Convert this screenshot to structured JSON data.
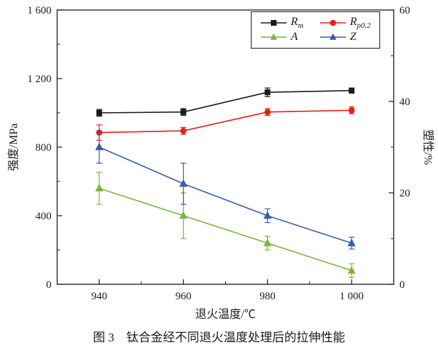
{
  "figure": {
    "caption": "图 3　钛合金经不同退火温度处理后的拉伸性能"
  },
  "chart_data": {
    "type": "line",
    "x": [
      940,
      960,
      980,
      1000
    ],
    "xlim": [
      930,
      1010
    ],
    "xticks": [
      "940",
      "960",
      "980",
      "1 000"
    ],
    "xlabel": "退火温度/℃",
    "ylabel_left": "强度/MPa",
    "ylabel_right": "塑性/%",
    "ylim_left": [
      0,
      1600
    ],
    "ylim_right": [
      0,
      60
    ],
    "yticks_left_values": [
      0,
      400,
      800,
      1200,
      1600
    ],
    "yticks_left": [
      "0",
      "400",
      "800",
      "1 200",
      "1 600"
    ],
    "yticks_left_minor": [
      200,
      600,
      1000,
      1400
    ],
    "yticks_right_values": [
      0,
      20,
      40,
      60
    ],
    "yticks_right": [
      "0",
      "20",
      "40",
      "60"
    ],
    "yticks_right_minor": [
      10,
      30,
      50
    ],
    "xticks_minor": [
      950,
      970,
      990
    ],
    "grid": false,
    "legend_position": "top-right",
    "series": [
      {
        "name": "Rm",
        "label_main": "R",
        "label_sub": "m",
        "axis": "left",
        "unit": "MPa",
        "color": "#1a1a1a",
        "marker": "square",
        "values": [
          1000,
          1005,
          1120,
          1130
        ],
        "errors": [
          20,
          20,
          25,
          15
        ]
      },
      {
        "name": "Rp0.2",
        "label_main": "R",
        "label_sub": "p0.2",
        "axis": "left",
        "unit": "MPa",
        "color": "#e32017",
        "marker": "circle",
        "values": [
          885,
          895,
          1005,
          1015
        ],
        "errors": [
          45,
          20,
          20,
          20
        ]
      },
      {
        "name": "A",
        "label_main": "A",
        "label_sub": "",
        "axis": "right",
        "unit": "%",
        "color": "#79b637",
        "marker": "triangle",
        "values": [
          21,
          15,
          9,
          3
        ],
        "errors": [
          3.5,
          5,
          1.5,
          1.5
        ]
      },
      {
        "name": "Z",
        "label_main": "Z",
        "label_sub": "",
        "axis": "right",
        "unit": "%",
        "color": "#3a5ba9",
        "marker": "triangle",
        "values": [
          30,
          22,
          15,
          9
        ],
        "errors": [
          3.5,
          4.5,
          1.5,
          1.3
        ]
      }
    ]
  }
}
